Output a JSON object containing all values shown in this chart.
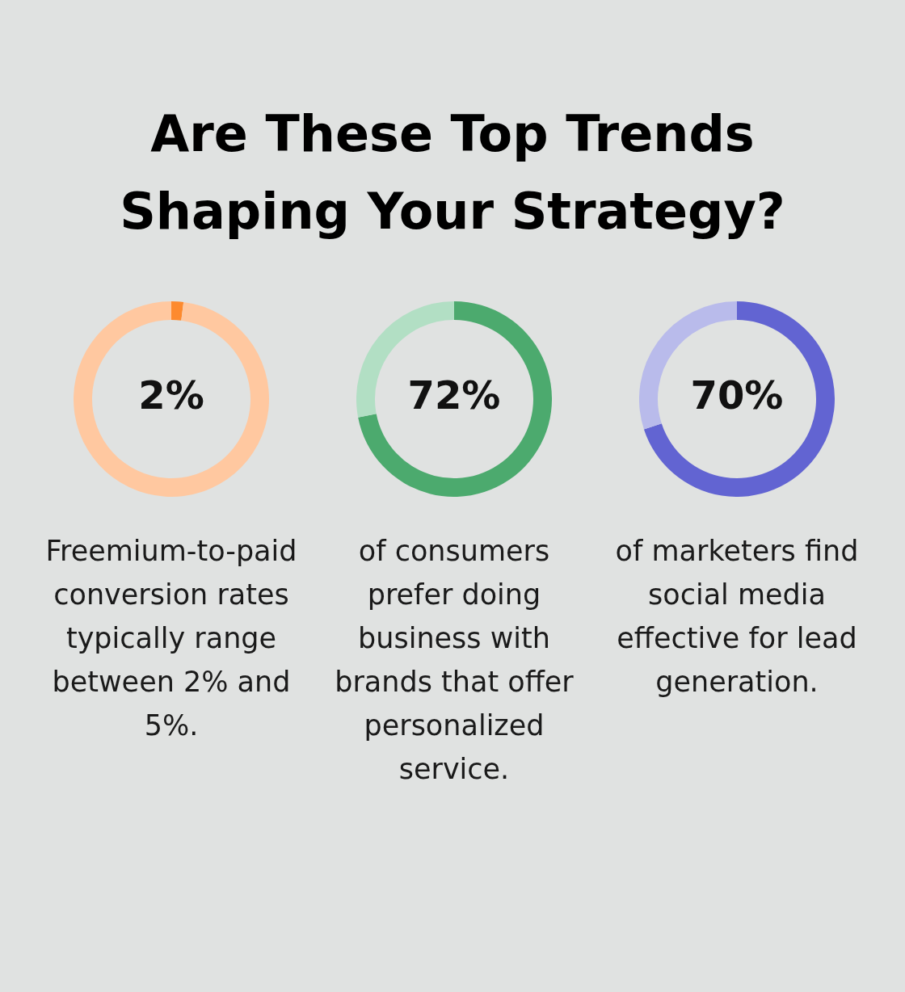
{
  "chart_data": [
    {
      "type": "donut",
      "title": "Are These Top Trends Shaping Your Strategy?",
      "categories": [
        null,
        null
      ],
      "values": [
        2,
        98
      ],
      "colors": [
        "#fd8a2e",
        "#ffc8a0"
      ],
      "value_labels": [
        "2%",
        null
      ],
      "annotations": [
        "Freemium-to-paid conversion rates typically range between 2% and 5%."
      ]
    },
    {
      "type": "donut",
      "categories": [
        null,
        null
      ],
      "values": [
        72,
        28
      ],
      "colors": [
        "#4caa6e",
        "#b2dfc4"
      ],
      "value_labels": [
        "72%",
        null
      ],
      "annotations": [
        "of consumers prefer doing business with brands that offer personalized service."
      ]
    },
    {
      "type": "donut",
      "categories": [
        null,
        null
      ],
      "values": [
        70,
        30
      ],
      "colors": [
        "#6264d2",
        "#b9bbeb"
      ],
      "value_labels": [
        "70%",
        null
      ],
      "annotations": [
        "of marketers find social media effective for lead generation."
      ]
    }
  ]
}
